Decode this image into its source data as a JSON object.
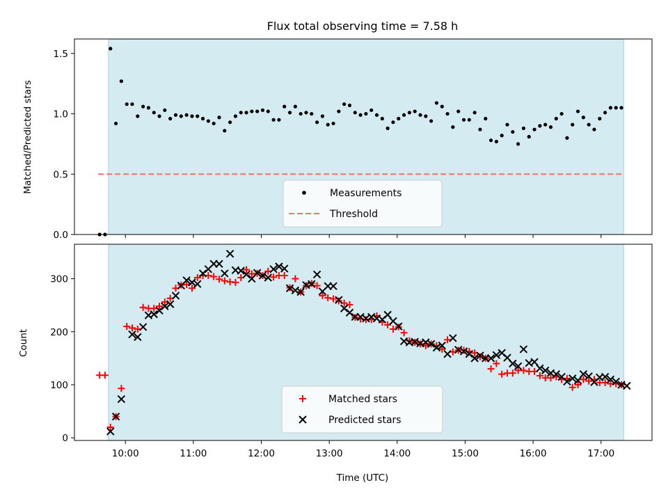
{
  "chart_data": [
    {
      "type": "scatter",
      "title": "Flux total observing time = 7.58 h",
      "ylabel": "Matched/Predicted stars",
      "xlim": [
        9.25,
        17.75
      ],
      "ylim": [
        0,
        1.62
      ],
      "yticks": [
        0.0,
        0.5,
        1.0,
        1.5
      ],
      "ytick_labels": [
        "0.0",
        "0.5",
        "1.0",
        "1.5"
      ],
      "shaded_x_range": [
        9.75,
        17.333
      ],
      "threshold": {
        "name": "Threshold",
        "value": 0.5,
        "x_range": [
          9.6,
          17.333
        ],
        "color": "#f47070"
      },
      "legend": {
        "position": "lower-center",
        "entries": [
          "Measurements",
          "Threshold"
        ]
      },
      "series": [
        {
          "name": "Measurements",
          "color": "#000000",
          "marker": "dot",
          "x": [
            9.62,
            9.7,
            9.78,
            9.86,
            9.94,
            10.02,
            10.1,
            10.18,
            10.26,
            10.34,
            10.42,
            10.5,
            10.58,
            10.66,
            10.74,
            10.82,
            10.9,
            10.98,
            11.06,
            11.14,
            11.22,
            11.3,
            11.38,
            11.46,
            11.54,
            11.62,
            11.7,
            11.78,
            11.86,
            11.94,
            12.02,
            12.1,
            12.18,
            12.26,
            12.34,
            12.42,
            12.5,
            12.58,
            12.66,
            12.74,
            12.82,
            12.9,
            12.98,
            13.06,
            13.14,
            13.22,
            13.3,
            13.38,
            13.46,
            13.54,
            13.62,
            13.7,
            13.78,
            13.86,
            13.94,
            14.02,
            14.1,
            14.18,
            14.26,
            14.34,
            14.42,
            14.5,
            14.58,
            14.66,
            14.74,
            14.82,
            14.9,
            14.98,
            15.06,
            15.14,
            15.22,
            15.3,
            15.38,
            15.46,
            15.54,
            15.62,
            15.7,
            15.78,
            15.86,
            15.94,
            16.02,
            16.1,
            16.18,
            16.26,
            16.34,
            16.42,
            16.5,
            16.58,
            16.66,
            16.74,
            16.82,
            16.9,
            16.98,
            17.06,
            17.14,
            17.22,
            17.3
          ],
          "y": [
            0.0,
            0.0,
            1.54,
            0.92,
            1.27,
            1.08,
            1.08,
            0.98,
            1.06,
            1.05,
            1.01,
            0.98,
            1.03,
            0.96,
            0.99,
            0.98,
            0.99,
            0.98,
            0.98,
            0.96,
            0.94,
            0.92,
            0.97,
            0.86,
            0.93,
            0.98,
            1.01,
            1.01,
            1.02,
            1.02,
            1.03,
            1.02,
            0.95,
            0.95,
            1.06,
            1.01,
            1.06,
            1.0,
            1.01,
            1.0,
            0.93,
            0.98,
            0.91,
            0.92,
            1.02,
            1.08,
            1.07,
            1.01,
            0.99,
            1.0,
            1.03,
            0.99,
            0.96,
            0.88,
            0.93,
            0.96,
            0.99,
            1.01,
            1.02,
            0.99,
            0.98,
            0.94,
            1.09,
            1.06,
            1.0,
            0.89,
            1.02,
            0.95,
            0.95,
            1.01,
            0.87,
            0.96,
            0.78,
            0.77,
            0.82,
            0.91,
            0.85,
            0.75,
            0.88,
            0.81,
            0.87,
            0.9,
            0.91,
            0.89,
            0.96,
            1.0,
            0.8,
            0.91,
            1.02,
            0.97,
            0.91,
            0.87,
            0.96,
            1.01,
            1.05,
            1.05,
            1.05
          ]
        }
      ]
    },
    {
      "type": "scatter",
      "xlabel": "Time (UTC)",
      "ylabel": "Count",
      "xlim": [
        9.25,
        17.75
      ],
      "ylim": [
        -5,
        365
      ],
      "xticks": [
        10,
        11,
        12,
        13,
        14,
        15,
        16,
        17
      ],
      "xtick_labels": [
        "10:00",
        "11:00",
        "12:00",
        "13:00",
        "14:00",
        "15:00",
        "16:00",
        "17:00"
      ],
      "yticks": [
        0,
        100,
        200,
        300
      ],
      "ytick_labels": [
        "0",
        "100",
        "200",
        "300"
      ],
      "shaded_x_range": [
        9.75,
        17.333
      ],
      "legend": {
        "position": "lower-center",
        "entries": [
          "Matched stars",
          "Predicted stars"
        ]
      },
      "series": [
        {
          "name": "Matched stars",
          "color": "#ff0000",
          "marker": "plus",
          "x": [
            9.62,
            9.7,
            9.78,
            9.86,
            9.94,
            10.02,
            10.1,
            10.18,
            10.26,
            10.34,
            10.42,
            10.5,
            10.58,
            10.66,
            10.74,
            10.82,
            10.9,
            10.98,
            11.06,
            11.14,
            11.22,
            11.3,
            11.38,
            11.46,
            11.54,
            11.62,
            11.7,
            11.78,
            11.86,
            11.94,
            12.02,
            12.1,
            12.18,
            12.26,
            12.34,
            12.42,
            12.5,
            12.58,
            12.66,
            12.74,
            12.82,
            12.9,
            12.98,
            13.06,
            13.14,
            13.22,
            13.3,
            13.38,
            13.46,
            13.54,
            13.62,
            13.7,
            13.78,
            13.86,
            13.94,
            14.02,
            14.1,
            14.18,
            14.26,
            14.34,
            14.42,
            14.5,
            14.58,
            14.66,
            14.74,
            14.82,
            14.9,
            14.98,
            15.06,
            15.14,
            15.22,
            15.3,
            15.38,
            15.46,
            15.54,
            15.62,
            15.7,
            15.78,
            15.86,
            15.94,
            16.02,
            16.1,
            16.18,
            16.26,
            16.34,
            16.42,
            16.5,
            16.58,
            16.66,
            16.74,
            16.82,
            16.9,
            16.98,
            17.06,
            17.14,
            17.22,
            17.3
          ],
          "y": [
            118,
            118,
            20,
            40,
            93,
            210,
            207,
            205,
            246,
            244,
            244,
            248,
            256,
            263,
            282,
            288,
            289,
            282,
            302,
            306,
            306,
            304,
            299,
            296,
            294,
            293,
            302,
            317,
            309,
            310,
            306,
            314,
            303,
            306,
            306,
            283,
            300,
            275,
            287,
            291,
            287,
            268,
            264,
            262,
            258,
            254,
            251,
            227,
            224,
            223,
            223,
            230,
            218,
            213,
            205,
            209,
            198,
            183,
            180,
            177,
            174,
            177,
            174,
            167,
            185,
            162,
            165,
            165,
            163,
            160,
            153,
            150,
            130,
            140,
            120,
            122,
            122,
            127,
            127,
            125,
            125,
            117,
            113,
            113,
            115,
            110,
            112,
            95,
            100,
            110,
            107,
            110,
            104,
            104,
            102,
            102,
            100
          ]
        },
        {
          "name": "Predicted stars",
          "color": "#000000",
          "marker": "x",
          "x": [
            9.78,
            9.86,
            9.94,
            10.1,
            10.18,
            10.26,
            10.34,
            10.42,
            10.5,
            10.58,
            10.66,
            10.74,
            10.82,
            10.9,
            10.98,
            11.06,
            11.14,
            11.22,
            11.3,
            11.38,
            11.46,
            11.54,
            11.62,
            11.7,
            11.78,
            11.86,
            11.94,
            12.02,
            12.1,
            12.18,
            12.26,
            12.34,
            12.42,
            12.5,
            12.58,
            12.66,
            12.74,
            12.82,
            12.9,
            12.98,
            13.06,
            13.14,
            13.22,
            13.3,
            13.38,
            13.46,
            13.54,
            13.62,
            13.7,
            13.78,
            13.86,
            13.94,
            14.02,
            14.1,
            14.18,
            14.26,
            14.34,
            14.42,
            14.5,
            14.58,
            14.66,
            14.74,
            14.82,
            14.9,
            14.98,
            15.06,
            15.14,
            15.22,
            15.3,
            15.38,
            15.46,
            15.54,
            15.62,
            15.7,
            15.78,
            15.86,
            15.94,
            16.02,
            16.1,
            16.18,
            16.26,
            16.34,
            16.42,
            16.5,
            16.58,
            16.66,
            16.74,
            16.82,
            16.9,
            16.98,
            17.06,
            17.14,
            17.22,
            17.3,
            17.38
          ],
          "y": [
            12,
            40,
            73,
            195,
            190,
            209,
            231,
            233,
            240,
            248,
            252,
            268,
            287,
            297,
            293,
            290,
            310,
            318,
            328,
            328,
            310,
            347,
            316,
            315,
            308,
            300,
            311,
            306,
            302,
            318,
            323,
            319,
            282,
            278,
            275,
            288,
            290,
            308,
            276,
            286,
            286,
            260,
            244,
            236,
            228,
            228,
            225,
            228,
            225,
            223,
            232,
            220,
            210,
            182,
            180,
            181,
            178,
            180,
            177,
            170,
            174,
            158,
            188,
            166,
            163,
            158,
            150,
            155,
            150,
            150,
            156,
            160,
            151,
            140,
            135,
            167,
            141,
            143,
            131,
            127,
            122,
            120,
            115,
            106,
            112,
            108,
            120,
            116,
            105,
            114,
            115,
            110,
            106,
            100,
            98
          ]
        }
      ]
    }
  ]
}
